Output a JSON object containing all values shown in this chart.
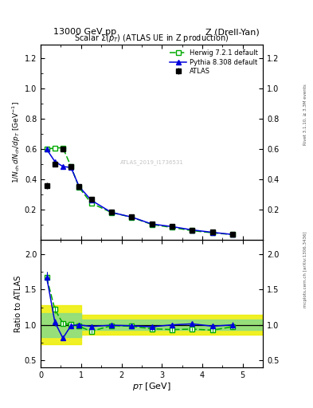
{
  "title_top": "13000 GeV pp",
  "title_right": "Z (Drell-Yan)",
  "plot_title": "Scalar Σ(p_T) (ATLAS UE in Z production)",
  "ylabel_main": "1/N_{ch} dN_{ch}/dp_T [GeV^{-1}]",
  "ylabel_ratio": "Ratio to ATLAS",
  "xlabel": "p_T [GeV]",
  "right_label_top": "Rivet 3.1.10, ≥ 3.3M events",
  "right_label_bottom": "mcplots.cern.ch [arXiv:1306.3436]",
  "watermark": "ATLAS_2019_I1736531",
  "atlas_x": [
    0.15,
    0.35,
    0.55,
    0.75,
    0.95,
    1.25,
    1.75,
    2.25,
    2.75,
    3.25,
    3.75,
    4.25,
    4.75
  ],
  "atlas_y": [
    0.36,
    0.5,
    0.6,
    0.485,
    0.355,
    0.27,
    0.185,
    0.155,
    0.11,
    0.09,
    0.067,
    0.053,
    0.038
  ],
  "atlas_yerr": [
    0.02,
    0.015,
    0.015,
    0.012,
    0.01,
    0.008,
    0.006,
    0.005,
    0.004,
    0.003,
    0.003,
    0.002,
    0.002
  ],
  "herwig_x": [
    0.15,
    0.35,
    0.55,
    0.75,
    0.95,
    1.25,
    1.75,
    2.25,
    2.75,
    3.25,
    3.75,
    4.25,
    4.75
  ],
  "herwig_y": [
    0.6,
    0.61,
    0.61,
    0.487,
    0.348,
    0.245,
    0.183,
    0.152,
    0.104,
    0.084,
    0.063,
    0.049,
    0.037
  ],
  "pythia_x": [
    0.15,
    0.35,
    0.55,
    0.75,
    0.95,
    1.25,
    1.75,
    2.25,
    2.75,
    3.25,
    3.75,
    4.25,
    4.75
  ],
  "pythia_y": [
    0.6,
    0.52,
    0.487,
    0.48,
    0.355,
    0.264,
    0.184,
    0.153,
    0.107,
    0.09,
    0.068,
    0.052,
    0.038
  ],
  "herwig_ratio": [
    1.67,
    1.22,
    1.02,
    1.005,
    0.98,
    0.908,
    0.989,
    0.981,
    0.945,
    0.933,
    0.94,
    0.925,
    0.974
  ],
  "pythia_ratio": [
    1.67,
    1.04,
    0.812,
    0.99,
    1.0,
    0.978,
    0.995,
    0.987,
    0.973,
    1.0,
    1.015,
    0.981,
    1.0
  ],
  "herwig_ratio_err": [
    0.08,
    0.05,
    0.03,
    0.03,
    0.03,
    0.025,
    0.025,
    0.025,
    0.025,
    0.025,
    0.025,
    0.025,
    0.03
  ],
  "pythia_ratio_err": [
    0.08,
    0.05,
    0.03,
    0.03,
    0.03,
    0.025,
    0.025,
    0.025,
    0.025,
    0.025,
    0.025,
    0.025,
    0.04
  ],
  "color_atlas": "#000000",
  "color_herwig": "#00aa00",
  "color_pythia": "#0000dd",
  "color_yellow": "#eeee00",
  "color_green": "#88dd88",
  "ylim_main": [
    0.0,
    1.29
  ],
  "ylim_ratio": [
    0.4,
    2.2
  ],
  "xlim": [
    0.0,
    5.5
  ],
  "yticks_main": [
    0.2,
    0.4,
    0.6,
    0.8,
    1.0,
    1.2
  ],
  "yticks_ratio": [
    0.5,
    1.0,
    1.5,
    2.0
  ],
  "xticks": [
    0,
    1,
    2,
    3,
    4,
    5
  ]
}
